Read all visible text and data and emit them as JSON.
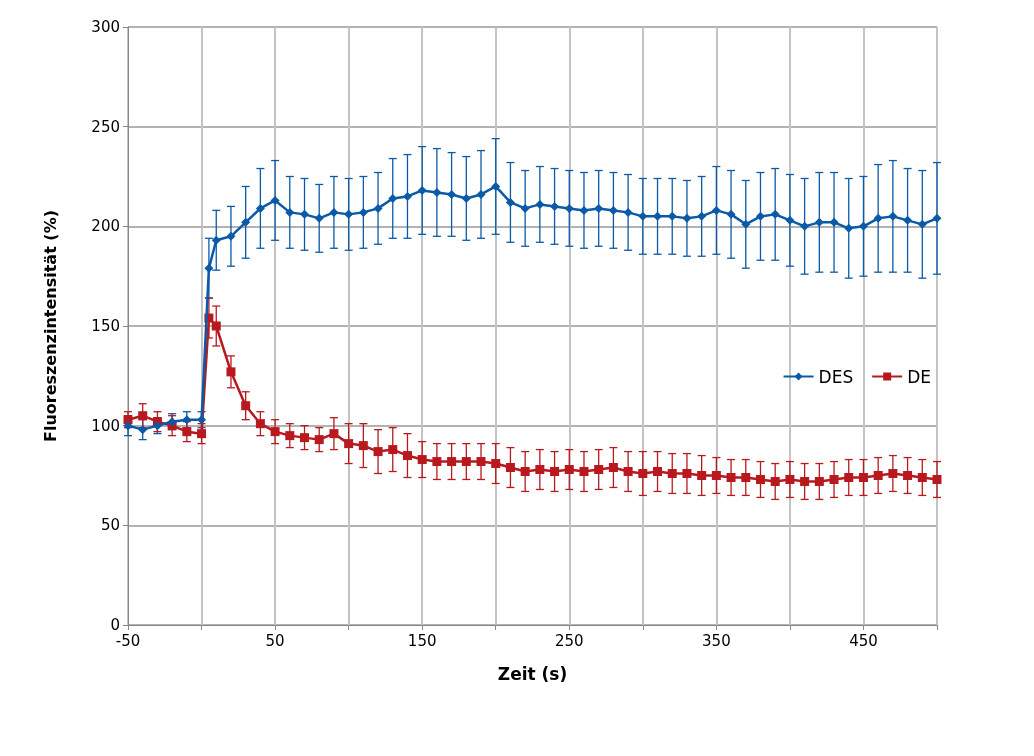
{
  "chart_data": {
    "type": "line",
    "xlabel": "Zeit (s)",
    "ylabel": "Fluoreszenzintensität (%)",
    "xlim": [
      -50,
      500
    ],
    "xticks": [
      -50,
      {
        "value": 0,
        "label": null
      },
      50,
      {
        "value": 100,
        "label": null
      },
      150,
      {
        "value": 200,
        "label": null
      },
      250,
      {
        "value": 300,
        "label": null
      },
      350,
      {
        "value": 400,
        "label": null
      },
      450,
      {
        "value": 500,
        "label": null
      }
    ],
    "ylim": [
      0,
      300
    ],
    "yticks": [
      0,
      50,
      100,
      150,
      200,
      250,
      300
    ],
    "grid": true,
    "legend": "right",
    "line_style": "solid",
    "x": [
      -50,
      -40,
      -30,
      -20,
      -10,
      0,
      5,
      10,
      20,
      30,
      40,
      50,
      60,
      70,
      80,
      90,
      100,
      110,
      120,
      130,
      140,
      150,
      160,
      170,
      180,
      190,
      200,
      210,
      220,
      230,
      240,
      250,
      260,
      270,
      280,
      290,
      300,
      310,
      320,
      330,
      340,
      350,
      360,
      370,
      380,
      390,
      400,
      410,
      420,
      430,
      440,
      450,
      460,
      470,
      480,
      490,
      500
    ],
    "series": [
      {
        "name": "DES",
        "color": "#0b5aa8",
        "marker": "diamond",
        "values": [
          100,
          98,
          100,
          102,
          103,
          103,
          179,
          193,
          195,
          202,
          209,
          213,
          207,
          206,
          204,
          207,
          206,
          207,
          209,
          214,
          215,
          218,
          217,
          216,
          214,
          216,
          220,
          212,
          209,
          211,
          210,
          209,
          208,
          209,
          208,
          207,
          205,
          205,
          205,
          204,
          205,
          208,
          206,
          201,
          205,
          206,
          203,
          200,
          202,
          202,
          199,
          200,
          204,
          205,
          203,
          201,
          204
        ],
        "errors": [
          5,
          5,
          4,
          4,
          4,
          4,
          15,
          15,
          15,
          18,
          20,
          20,
          18,
          18,
          17,
          18,
          18,
          18,
          18,
          20,
          21,
          22,
          22,
          21,
          21,
          22,
          24,
          20,
          19,
          19,
          19,
          19,
          19,
          19,
          19,
          19,
          19,
          19,
          19,
          19,
          20,
          22,
          22,
          22,
          22,
          23,
          23,
          24,
          25,
          25,
          25,
          25,
          27,
          28,
          26,
          27,
          28
        ]
      },
      {
        "name": "DE",
        "color": "#b8191f",
        "marker": "square",
        "values": [
          103,
          105,
          102,
          100,
          97,
          96,
          154,
          150,
          127,
          110,
          101,
          97,
          95,
          94,
          93,
          96,
          91,
          90,
          87,
          88,
          85,
          83,
          82,
          82,
          82,
          82,
          81,
          79,
          77,
          78,
          77,
          78,
          77,
          78,
          79,
          77,
          76,
          77,
          76,
          76,
          75,
          75,
          74,
          74,
          73,
          72,
          73,
          72,
          72,
          73,
          74,
          74,
          75,
          76,
          75,
          74,
          73
        ],
        "errors": [
          4,
          6,
          5,
          5,
          5,
          5,
          10,
          10,
          8,
          7,
          6,
          6,
          6,
          6,
          6,
          8,
          10,
          11,
          11,
          11,
          11,
          9,
          9,
          9,
          9,
          9,
          10,
          10,
          10,
          10,
          10,
          10,
          10,
          10,
          10,
          10,
          11,
          10,
          10,
          10,
          10,
          9,
          9,
          9,
          9,
          9,
          9,
          9,
          9,
          9,
          9,
          9,
          9,
          9,
          9,
          9,
          9
        ]
      }
    ]
  }
}
